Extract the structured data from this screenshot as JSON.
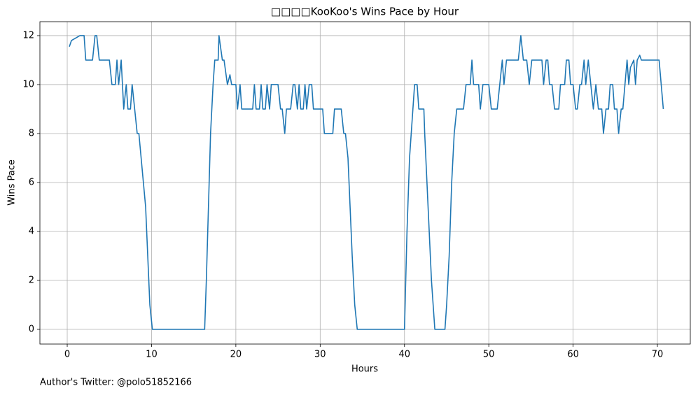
{
  "chart_data": {
    "type": "line",
    "title": "□□□□KooKoo's Wins Pace by Hour",
    "xlabel": "Hours",
    "ylabel": "Wins Pace",
    "annotation": "Author's Twitter: @polo51852166",
    "x": [
      0.25,
      0.5,
      1,
      1.5,
      2,
      2.2,
      3,
      3.3,
      3.5,
      3.8,
      5,
      5.3,
      5.7,
      5.9,
      6.1,
      6.4,
      6.7,
      7,
      7.2,
      7.5,
      7.7,
      8.3,
      8.5,
      9.3,
      9.8,
      10.1,
      16.3,
      16.5,
      17,
      17.3,
      17.5,
      17.9,
      18,
      18.4,
      18.6,
      19,
      19.3,
      19.5,
      20,
      20.2,
      20.5,
      20.7,
      22,
      22.2,
      22.4,
      22.8,
      23,
      23.2,
      23.5,
      23.7,
      24,
      24.2,
      25,
      25.3,
      25.5,
      25.8,
      26,
      26.5,
      26.8,
      27,
      27.3,
      27.5,
      27.7,
      28,
      28.2,
      28.4,
      28.7,
      29,
      29.2,
      30.3,
      30.5,
      31.5,
      31.7,
      32.5,
      32.8,
      33,
      33.3,
      33.8,
      34.1,
      34.4,
      40,
      40.3,
      40.6,
      41,
      41.2,
      41.5,
      41.7,
      42.3,
      42.4,
      42.8,
      43.2,
      43.6,
      44.8,
      45,
      45.3,
      45.6,
      45.9,
      46.2,
      47,
      47.3,
      47.8,
      48,
      48.2,
      48.8,
      49,
      49.3,
      50,
      50.3,
      51,
      51.3,
      51.6,
      51.8,
      52.1,
      53,
      53.5,
      53.8,
      54.1,
      54.5,
      54.8,
      55.1,
      56.3,
      56.5,
      56.8,
      57,
      57.2,
      57.5,
      57.8,
      58.3,
      58.5,
      59,
      59.2,
      59.5,
      59.7,
      60,
      60.3,
      60.5,
      60.8,
      61,
      61.3,
      61.5,
      61.8,
      62.1,
      62.4,
      62.7,
      63,
      63.4,
      63.6,
      63.9,
      64.2,
      64.4,
      64.7,
      64.9,
      65.2,
      65.4,
      65.7,
      65.9,
      66.4,
      66.6,
      66.8,
      67.2,
      67.4,
      67.6,
      67.9,
      68.1,
      70.2,
      70.7
    ],
    "series": [
      {
        "name": "Wins Pace",
        "color": "#1f77b4",
        "values": [
          11.55,
          11.8,
          11.9,
          12,
          12,
          11,
          11,
          12,
          12,
          11,
          11,
          10,
          10,
          11,
          10,
          11,
          9,
          10,
          9,
          9,
          10,
          8,
          8,
          5,
          1,
          0,
          0,
          2,
          8,
          10,
          11,
          11,
          12,
          11,
          11,
          10,
          10.4,
          10,
          10,
          9,
          10,
          9,
          9,
          10,
          9,
          9,
          10,
          9,
          9,
          10,
          9,
          10,
          10,
          9,
          9,
          8,
          9,
          9,
          10,
          10,
          9,
          10,
          9,
          9,
          10,
          9,
          10,
          10,
          9,
          9,
          8,
          8,
          9,
          9,
          8,
          8,
          7,
          3,
          1,
          0,
          0,
          4,
          7,
          9,
          10,
          10,
          9,
          9,
          8,
          5,
          2,
          0,
          0,
          1,
          3,
          6,
          8,
          9,
          9,
          10,
          10,
          11,
          10,
          10,
          9,
          10,
          10,
          9,
          9,
          10,
          11,
          10,
          11,
          11,
          11,
          12,
          11,
          11,
          10,
          11,
          11,
          10,
          11,
          11,
          10,
          10,
          9,
          9,
          10,
          10,
          11,
          11,
          10,
          10,
          9,
          9,
          10,
          10,
          11,
          10,
          11,
          10,
          9,
          10,
          9,
          9,
          8,
          9,
          9,
          10,
          10,
          9,
          9,
          8,
          9,
          9,
          11,
          10,
          10.7,
          11,
          10,
          11,
          11.2,
          11,
          11,
          9
        ]
      }
    ],
    "xlim": [
      -3.24,
      73.9
    ],
    "ylim": [
      -0.6,
      12.57
    ],
    "xticks": [
      0,
      10,
      20,
      30,
      40,
      50,
      60,
      70
    ],
    "yticks": [
      0,
      2,
      4,
      6,
      8,
      10,
      12
    ],
    "grid": true
  }
}
